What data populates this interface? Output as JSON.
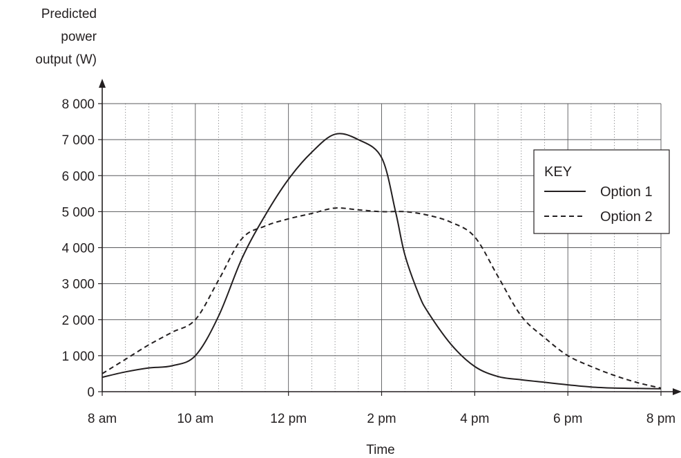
{
  "chart_data": {
    "type": "line",
    "ylabel_lines": [
      "Predicted",
      "power",
      "output (W)"
    ],
    "xlabel": "Time",
    "x_ticks": [
      "8 am",
      "10 am",
      "12 pm",
      "2 pm",
      "4 pm",
      "6 pm",
      "8 pm"
    ],
    "y_ticks": [
      "0",
      "1 000",
      "2 000",
      "3 000",
      "4 000",
      "5 000",
      "6 000",
      "7 000",
      "8 000"
    ],
    "xlim_hours": [
      8,
      20
    ],
    "ylim": [
      0,
      8000
    ],
    "grid": true,
    "minor_x_gridlines_per_major": 4,
    "legend": {
      "title": "KEY",
      "position": "right",
      "entries": [
        "Option 1",
        "Option 2"
      ]
    },
    "series": [
      {
        "name": "Option 1",
        "style": "solid",
        "x_hours": [
          8,
          8.5,
          9,
          9.5,
          10,
          10.5,
          11,
          11.5,
          12,
          12.5,
          13,
          13.5,
          14,
          14.3,
          14.5,
          14.8,
          15,
          15.5,
          16,
          16.5,
          17,
          17.5,
          18,
          18.5,
          19,
          19.5,
          20
        ],
        "values": [
          400,
          550,
          660,
          720,
          1000,
          2100,
          3700,
          4900,
          5900,
          6650,
          7150,
          7000,
          6500,
          5000,
          3800,
          2700,
          2200,
          1300,
          700,
          420,
          330,
          260,
          190,
          130,
          100,
          90,
          80
        ]
      },
      {
        "name": "Option 2",
        "style": "dashed",
        "x_hours": [
          8,
          8.5,
          9,
          9.5,
          10,
          10.5,
          11,
          11.5,
          12,
          12.5,
          13,
          13.5,
          14,
          14.5,
          15,
          15.5,
          16,
          16.5,
          17,
          17.5,
          18,
          18.5,
          19,
          19.5,
          20
        ],
        "values": [
          500,
          900,
          1300,
          1650,
          2000,
          3100,
          4250,
          4600,
          4800,
          4950,
          5100,
          5050,
          5000,
          5000,
          4900,
          4700,
          4300,
          3200,
          2100,
          1500,
          1000,
          700,
          450,
          250,
          100
        ]
      }
    ]
  }
}
